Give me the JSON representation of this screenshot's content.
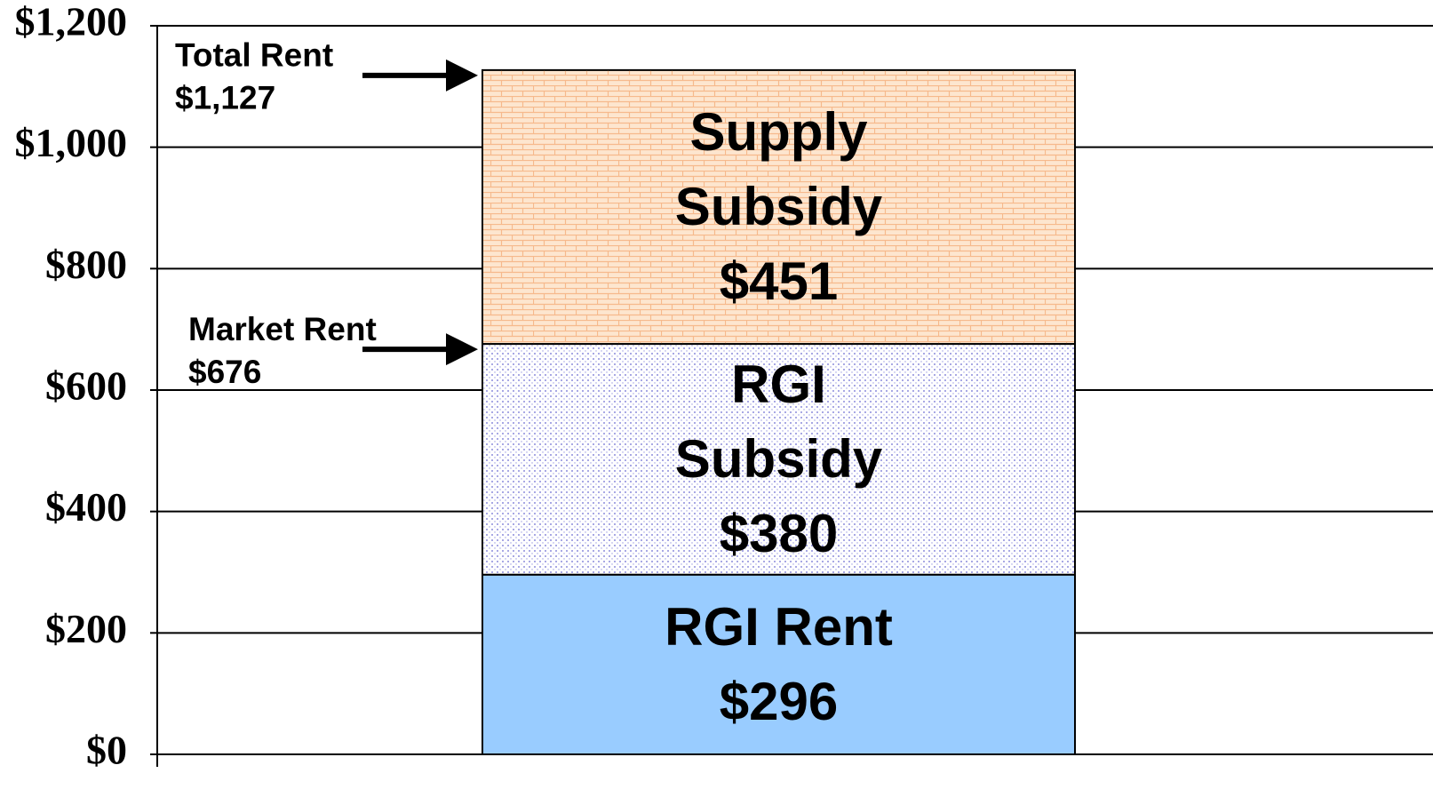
{
  "chart_data": {
    "type": "bar",
    "stacked": true,
    "categories": [
      null
    ],
    "series": [
      {
        "name": "RGI Rent",
        "color": "#99ccff",
        "values": [
          296
        ],
        "value_labels": [
          "$296"
        ]
      },
      {
        "name": "RGI Subsidy",
        "color": "#ffffff",
        "values": [
          380
        ],
        "value_labels": [
          "$380"
        ]
      },
      {
        "name": "Supply Subsidy",
        "color": "#fde6cf",
        "values": [
          451
        ],
        "value_labels": [
          "$451"
        ]
      }
    ],
    "annotations": [
      {
        "text": "Total Rent",
        "value": 1127,
        "value_label": "$1,127"
      },
      {
        "text": "Market Rent",
        "value": 676,
        "value_label": "$676"
      }
    ],
    "ylim": [
      0,
      1200
    ],
    "yticks": [
      {
        "value": 0,
        "label": "$0"
      },
      {
        "value": 200,
        "label": "$200"
      },
      {
        "value": 400,
        "label": "$400"
      },
      {
        "value": 600,
        "label": "$600"
      },
      {
        "value": 800,
        "label": "$800"
      },
      {
        "value": 1000,
        "label": "$1,000"
      },
      {
        "value": 1200,
        "label": "$1,200"
      }
    ],
    "grid": true
  }
}
